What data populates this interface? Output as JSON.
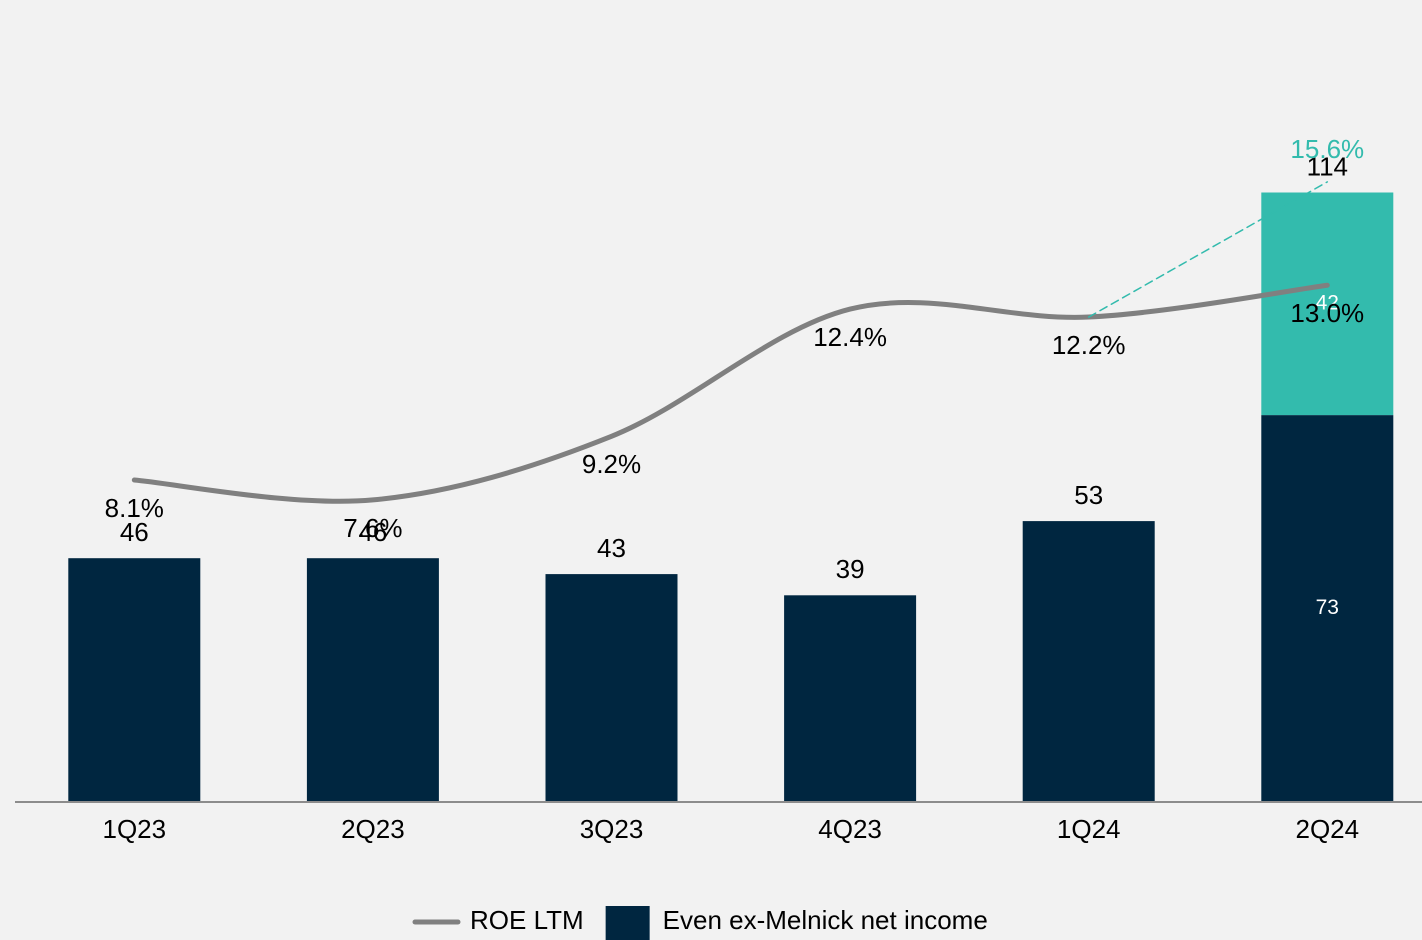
{
  "chart_data": {
    "type": "bar",
    "categories": [
      "1Q23",
      "2Q23",
      "3Q23",
      "4Q23",
      "1Q24",
      "2Q24"
    ],
    "ylim": [
      0,
      150
    ],
    "y2lim": [
      0,
      20
    ],
    "series": [
      {
        "name": "Even ex-Melnick net income",
        "type": "bar",
        "color": "#002640",
        "values": [
          46,
          46,
          43,
          39,
          53,
          73
        ]
      },
      {
        "type": "bar",
        "color": "#33bbad",
        "values": [
          null,
          null,
          null,
          null,
          null,
          42
        ]
      },
      {
        "name": "ROE LTM",
        "type": "line",
        "axis": "y2",
        "color": "#808080",
        "values": [
          8.1,
          7.6,
          9.2,
          12.4,
          12.2,
          13.0
        ],
        "value_labels": [
          "8.1%",
          "7.6%",
          "9.2%",
          "12.4%",
          "12.2%",
          "13.0%"
        ]
      },
      {
        "type": "line",
        "axis": "y2",
        "dashed": true,
        "color": "#33bbad",
        "values": [
          null,
          null,
          null,
          null,
          12.2,
          15.6
        ],
        "value_labels": [
          null,
          null,
          null,
          null,
          null,
          "15.6%"
        ]
      }
    ],
    "total_labels": [
      null,
      null,
      null,
      null,
      null,
      114
    ]
  }
}
